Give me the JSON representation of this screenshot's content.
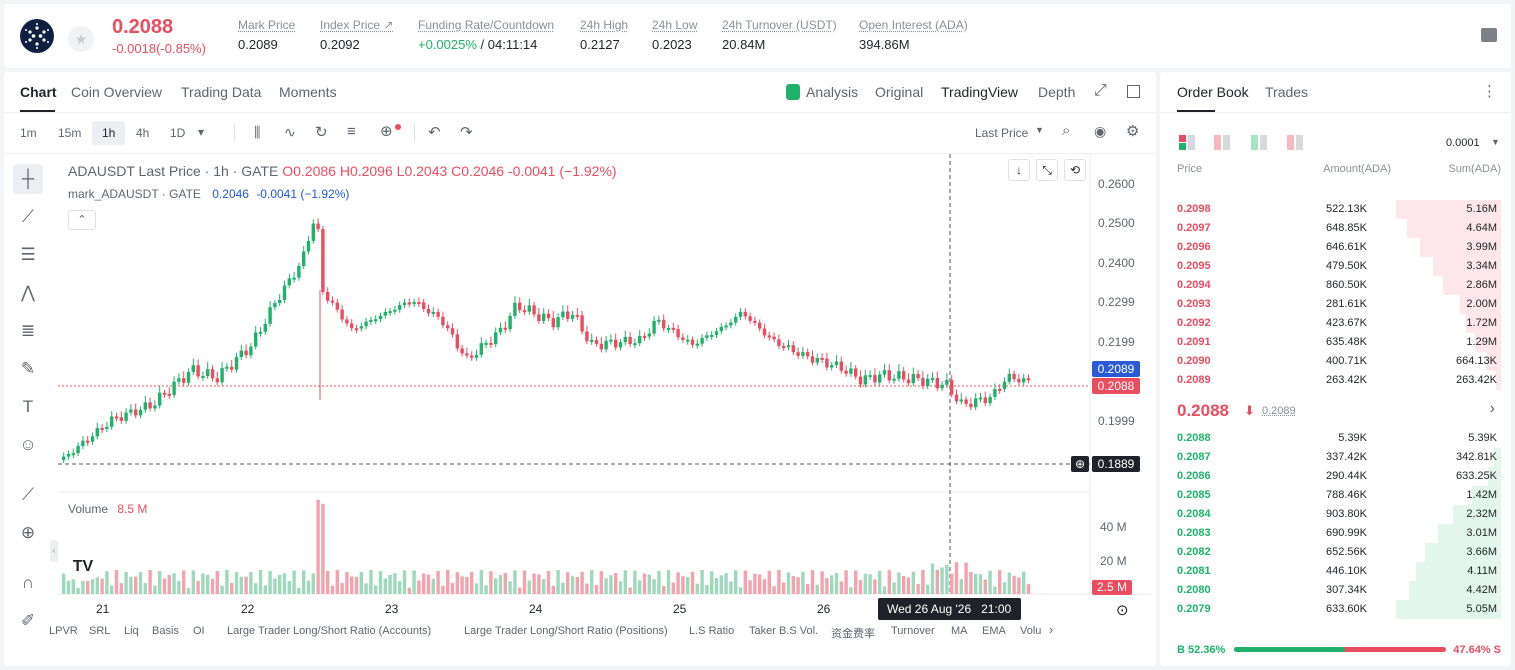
{
  "ticker": {
    "last": "0.2088",
    "change": "-0.0018(-0.85%)",
    "stats": [
      {
        "k": "Mark Price",
        "v": "0.2089"
      },
      {
        "k": "Index Price ↗",
        "v": "0.2092"
      },
      {
        "k": "Funding Rate/Countdown",
        "v": "+0.0025%",
        "v2": " / 04:11:14"
      },
      {
        "k": "24h High",
        "v": "0.2127"
      },
      {
        "k": "24h Low",
        "v": "0.2023"
      },
      {
        "k": "24h Turnover (USDT)",
        "v": "20.84M"
      },
      {
        "k": "Open Interest (ADA)",
        "v": "394.86M"
      }
    ]
  },
  "chart_tabs": [
    "Chart",
    "Coin Overview",
    "Trading Data",
    "Moments"
  ],
  "view_tabs": [
    "Analysis",
    "Original",
    "TradingView",
    "Depth"
  ],
  "intervals": [
    "1m",
    "15m",
    "1h",
    "4h",
    "1D"
  ],
  "price_type": "Last Price",
  "legend": {
    "title": "ADAUSDT Last Price · 1h · GATE",
    "o": "O0.2086",
    "h": "H0.2096",
    "l": "L0.2043",
    "c": "C0.2046",
    "chg": "-0.0041 (−1.92%)",
    "mark": "mark_ADAUSDT · GATE",
    "mv": "0.2046",
    "mchg": "-0.0041 (−1.92%)"
  },
  "y_ticks": [
    "0.2600",
    "0.2500",
    "0.2400",
    "0.2299",
    "0.2199",
    "0.1999"
  ],
  "price_tags": {
    "mark": "0.2089",
    "last": "0.2088",
    "cross": "0.1889"
  },
  "volume": {
    "label": "Volume",
    "value": "8.5 M",
    "ticks": [
      "40 M",
      "20 M"
    ],
    "tag": "2.5 M"
  },
  "x_ticks": [
    "21",
    "22",
    "23",
    "24",
    "25",
    "26"
  ],
  "crosshair_date": "Wed 26 Aug '26   21:00",
  "indicators": [
    "LPVR",
    "SRL",
    "Liq",
    "Basis",
    "OI",
    "Large Trader Long/Short Ratio (Accounts)",
    "Large Trader Long/Short Ratio (Positions)",
    "L.S Ratio",
    "Taker B.S Vol.",
    "资金费率",
    "Turnover",
    "MA",
    "EMA",
    "Volu"
  ],
  "orderbook": {
    "tabs": [
      "Order Book",
      "Trades"
    ],
    "precision": "0.0001",
    "headers": [
      "Price",
      "Amount(ADA)",
      "Sum(ADA)"
    ],
    "asks": [
      [
        "0.2098",
        "522.13K",
        "5.16M",
        1.0
      ],
      [
        "0.2097",
        "648.85K",
        "4.64M",
        0.9
      ],
      [
        "0.2096",
        "646.61K",
        "3.99M",
        0.77
      ],
      [
        "0.2095",
        "479.50K",
        "3.34M",
        0.65
      ],
      [
        "0.2094",
        "860.50K",
        "2.86M",
        0.55
      ],
      [
        "0.2093",
        "281.61K",
        "2.00M",
        0.39
      ],
      [
        "0.2092",
        "423.67K",
        "1.72M",
        0.33
      ],
      [
        "0.2091",
        "635.48K",
        "1.29M",
        0.25
      ],
      [
        "0.2090",
        "400.71K",
        "664.13K",
        0.13
      ],
      [
        "0.2089",
        "263.42K",
        "263.42K",
        0.05
      ]
    ],
    "mid": "0.2088",
    "mid_mark": "0.2089",
    "bids": [
      [
        "0.2088",
        "5.39K",
        "5.39K",
        0.0
      ],
      [
        "0.2087",
        "337.42K",
        "342.81K",
        0.07
      ],
      [
        "0.2086",
        "290.44K",
        "633.25K",
        0.12
      ],
      [
        "0.2085",
        "788.46K",
        "1.42M",
        0.28
      ],
      [
        "0.2084",
        "903.80K",
        "2.32M",
        0.46
      ],
      [
        "0.2083",
        "690.99K",
        "3.01M",
        0.6
      ],
      [
        "0.2082",
        "652.56K",
        "3.66M",
        0.72
      ],
      [
        "0.2081",
        "446.10K",
        "4.11M",
        0.81
      ],
      [
        "0.2080",
        "307.34K",
        "4.42M",
        0.88
      ],
      [
        "0.2079",
        "633.60K",
        "5.05M",
        1.0
      ]
    ],
    "buy_pct": "52.36%",
    "sell_pct": "47.64%",
    "buy_ratio": 0.5236
  }
}
